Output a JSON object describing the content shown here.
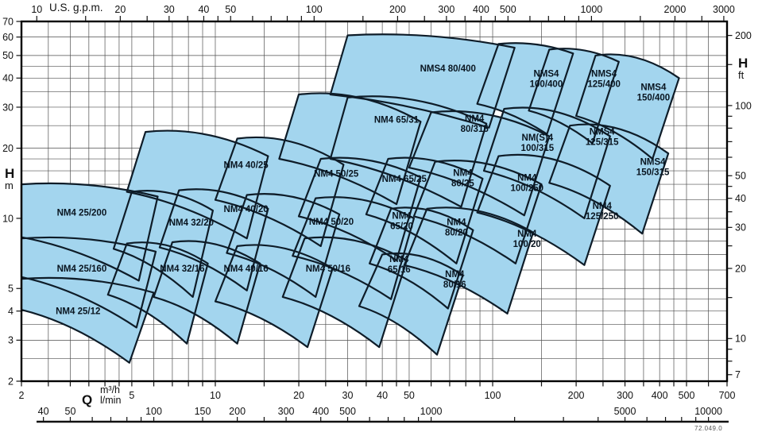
{
  "colors": {
    "region_fill": "#a3d5ee",
    "region_stroke": "#0e1c28",
    "region_text": "#091520",
    "grid": "#4f4f4f",
    "frame": "#000000",
    "tick": "#111111",
    "text": "#111111"
  },
  "footer": {
    "code": "72.049.0"
  },
  "chart_data": {
    "type": "area",
    "subtype": "pump-selection-envelope-map",
    "title": "",
    "grid": "on",
    "axes": {
      "q": {
        "symbol": "Q",
        "unit_m3h": "m³/h",
        "unit_lmin": "l/min",
        "min": 2,
        "max": 700,
        "scale": "log",
        "labeled": [
          2,
          5,
          10,
          20,
          30,
          40,
          50,
          100,
          200,
          300,
          400,
          500,
          700
        ],
        "grid": [
          2,
          2.5,
          3,
          3.5,
          4,
          4.5,
          5,
          6,
          7,
          8,
          9,
          10,
          15,
          20,
          25,
          30,
          35,
          40,
          45,
          50,
          60,
          70,
          80,
          90,
          100,
          150,
          200,
          250,
          300,
          350,
          400,
          450,
          500,
          600,
          700
        ]
      },
      "gpm": {
        "title": "U.S. g.p.m.",
        "per_m3h": 4.40287,
        "labeled": [
          10,
          20,
          30,
          40,
          50,
          100,
          200,
          300,
          400,
          500,
          1000,
          2000,
          3000
        ],
        "ticks": [
          10,
          15,
          20,
          25,
          30,
          35,
          40,
          45,
          50,
          60,
          70,
          80,
          90,
          100,
          150,
          200,
          250,
          300,
          350,
          400,
          450,
          500,
          600,
          700,
          800,
          900,
          1000,
          1500,
          2000,
          2500,
          3000
        ]
      },
      "lmin": {
        "per_m3h": 16.6667,
        "labeled": [
          40,
          50,
          100,
          150,
          200,
          300,
          400,
          500,
          1000,
          5000,
          10000
        ],
        "ticks": [
          40,
          50,
          60,
          70,
          80,
          90,
          100,
          150,
          200,
          250,
          300,
          400,
          500,
          600,
          700,
          800,
          900,
          1000,
          2000,
          3000,
          4000,
          5000,
          6000,
          7000,
          8000,
          9000,
          10000
        ]
      },
      "h_m": {
        "symbol": "H",
        "unit": "m",
        "min": 2,
        "max": 70,
        "scale": "log",
        "labeled": [
          70,
          60,
          50,
          40,
          30,
          20,
          10,
          5,
          4,
          3,
          2
        ],
        "grid": [
          2,
          2.5,
          3,
          3.5,
          4,
          4.5,
          5,
          6,
          7,
          8,
          9,
          10,
          12,
          14,
          16,
          18,
          20,
          25,
          30,
          35,
          40,
          45,
          50,
          60,
          70
        ]
      },
      "h_ft": {
        "symbol": "H",
        "unit": "ft",
        "per_m": 3.28084,
        "labeled": [
          200,
          100,
          50,
          40,
          30,
          20,
          10,
          7
        ],
        "ticks": [
          7,
          8,
          9,
          10,
          15,
          20,
          25,
          30,
          35,
          40,
          45,
          50,
          60,
          70,
          80,
          90,
          100,
          150,
          200
        ]
      }
    },
    "regions": [
      {
        "name": "NM4 25/200",
        "label_lines": [
          "NM4 25/200"
        ],
        "label_at": [
          3.3,
          10.6
        ],
        "envelope": [
          [
            2,
            14
          ],
          [
            6.2,
            12.4
          ],
          [
            5.3,
            5.4
          ],
          [
            2,
            8.3
          ]
        ]
      },
      {
        "name": "NM4 25/160",
        "label_lines": [
          "NM4 25/160"
        ],
        "label_at": [
          3.3,
          6.1
        ],
        "envelope": [
          [
            2,
            8.2
          ],
          [
            6.1,
            7.2
          ],
          [
            5.2,
            3.4
          ],
          [
            2,
            5.6
          ]
        ]
      },
      {
        "name": "NM4 25/12",
        "label_lines": [
          "NM4 25/12"
        ],
        "label_at": [
          3.2,
          4.0
        ],
        "envelope": [
          [
            2,
            5.5
          ],
          [
            6,
            4.8
          ],
          [
            4.9,
            2.4
          ],
          [
            2,
            4.05
          ]
        ]
      },
      {
        "name": "NM4 32/20",
        "label_lines": [
          "NM4 32/20"
        ],
        "label_at": [
          8.2,
          9.6
        ],
        "envelope": [
          [
            5,
            13
          ],
          [
            9.8,
            10.8
          ],
          [
            8.3,
            4.6
          ],
          [
            4.3,
            7.4
          ]
        ]
      },
      {
        "name": "NM4 32/16",
        "label_lines": [
          "NM4 32/16"
        ],
        "label_at": [
          7.6,
          6.1
        ],
        "envelope": [
          [
            4.8,
            7.8
          ],
          [
            9.4,
            6.4
          ],
          [
            7.9,
            2.9
          ],
          [
            4.1,
            4.7
          ]
        ]
      },
      {
        "name": "NM4 40/25",
        "label_lines": [
          "NM4 40/25"
        ],
        "label_at": [
          12.9,
          17
        ],
        "envelope": [
          [
            5.6,
            23.5
          ],
          [
            15.5,
            18.5
          ],
          [
            13,
            8.2
          ],
          [
            4.8,
            13
          ]
        ]
      },
      {
        "name": "NM4 40/20",
        "label_lines": [
          "NM4 40/20"
        ],
        "label_at": [
          12.9,
          11
        ],
        "envelope": [
          [
            7.4,
            13.2
          ],
          [
            15.5,
            11
          ],
          [
            13,
            4.9
          ],
          [
            6.3,
            7.5
          ]
        ]
      },
      {
        "name": "NM4 40/16",
        "label_lines": [
          "NM4 40/16"
        ],
        "label_at": [
          12.9,
          6.1
        ],
        "envelope": [
          [
            7,
            7.9
          ],
          [
            14.5,
            6.4
          ],
          [
            12,
            2.9
          ],
          [
            6,
            4.6
          ]
        ]
      },
      {
        "name": "NM4 50/25",
        "label_lines": [
          "NM4 50/25"
        ],
        "label_at": [
          27.3,
          15.6
        ],
        "envelope": [
          [
            12,
            22
          ],
          [
            29,
            17
          ],
          [
            24,
            7.6
          ],
          [
            10,
            12
          ]
        ]
      },
      {
        "name": "NM4 50/20",
        "label_lines": [
          "NM4 50/20"
        ],
        "label_at": [
          26.2,
          9.7
        ],
        "envelope": [
          [
            13,
            12.6
          ],
          [
            28,
            10.4
          ],
          [
            23,
            4.6
          ],
          [
            11,
            7.1
          ]
        ]
      },
      {
        "name": "NM4 50/16",
        "label_lines": [
          "NM4 50/16"
        ],
        "label_at": [
          25.5,
          6.1
        ],
        "envelope": [
          [
            12,
            7.6
          ],
          [
            26.5,
            6.1
          ],
          [
            21.5,
            2.8
          ],
          [
            10,
            4.4
          ]
        ]
      },
      {
        "name": "NM4 65/31",
        "label_lines": [
          "NM4 65/31"
        ],
        "label_at": [
          45,
          26.6
        ],
        "envelope": [
          [
            20,
            34
          ],
          [
            55,
            26
          ],
          [
            45,
            11.5
          ],
          [
            17,
            18
          ]
        ]
      },
      {
        "name": "NM4 65/25",
        "label_lines": [
          "NM4 65/25"
        ],
        "label_at": [
          48,
          14.8
        ],
        "envelope": [
          [
            24,
            18
          ],
          [
            55,
            15
          ],
          [
            45,
            6.6
          ],
          [
            20,
            10.2
          ]
        ]
      },
      {
        "name": "NM4 65/20",
        "label_lines": [
          "NM4",
          "65/20"
        ],
        "label_at": [
          47,
          9.8
        ],
        "envelope": [
          [
            23,
            12.2
          ],
          [
            52,
            10
          ],
          [
            43,
            4.5
          ],
          [
            19,
            6.9
          ]
        ]
      },
      {
        "name": "NM4 65/16",
        "label_lines": [
          "NM4",
          "65/16"
        ],
        "label_at": [
          46,
          6.4
        ],
        "envelope": [
          [
            21,
            8.2
          ],
          [
            49,
            6.6
          ],
          [
            39,
            2.8
          ],
          [
            17.5,
            4.6
          ]
        ]
      },
      {
        "name": "NM4 80/315",
        "label_lines": [
          "NM4",
          "80/315"
        ],
        "label_at": [
          86,
          25.6
        ],
        "envelope": [
          [
            30,
            33
          ],
          [
            95,
            25.5
          ],
          [
            77,
            11.2
          ],
          [
            26,
            18
          ]
        ]
      },
      {
        "name": "NM4 80/25",
        "label_lines": [
          "NM4",
          "80/25"
        ],
        "label_at": [
          78,
          15
        ],
        "envelope": [
          [
            42,
            18
          ],
          [
            92,
            14.8
          ],
          [
            74,
            6.4
          ],
          [
            35,
            10.4
          ]
        ]
      },
      {
        "name": "NM4 80/20",
        "label_lines": [
          "NM4",
          "80/20"
        ],
        "label_at": [
          74,
          9.2
        ],
        "envelope": [
          [
            43,
            11
          ],
          [
            85,
            8.9
          ],
          [
            69,
            4.1
          ],
          [
            36,
            6.4
          ]
        ]
      },
      {
        "name": "NM4 80/16",
        "label_lines": [
          "NM4",
          "80/16"
        ],
        "label_at": [
          73,
          5.5
        ],
        "envelope": [
          [
            40,
            7
          ],
          [
            78,
            5.7
          ],
          [
            63,
            2.6
          ],
          [
            33,
            4.2
          ]
        ]
      },
      {
        "name": "NM(S)4 100/315",
        "label_lines": [
          "NM(S)4",
          "100/315"
        ],
        "label_at": [
          145,
          21.2
        ],
        "envelope": [
          [
            60,
            28.5
          ],
          [
            160,
            22.5
          ],
          [
            130,
            10.3
          ],
          [
            50,
            16.5
          ]
        ]
      },
      {
        "name": "NM4 100/250",
        "label_lines": [
          "NM4",
          "100/250"
        ],
        "label_at": [
          133,
          14.3
        ],
        "envelope": [
          [
            62,
            17.5
          ],
          [
            150,
            14
          ],
          [
            121,
            6.4
          ],
          [
            52,
            10.2
          ]
        ]
      },
      {
        "name": "NM4 100/20",
        "label_lines": [
          "NM4",
          "100/20"
        ],
        "label_at": [
          133,
          8.2
        ],
        "envelope": [
          [
            58,
            11
          ],
          [
            140,
            8.7
          ],
          [
            113,
            3.9
          ],
          [
            48,
            6.3
          ]
        ]
      },
      {
        "name": "NMS4 125/315",
        "label_lines": [
          "NMS4",
          "125/315"
        ],
        "label_at": [
          248,
          22.5
        ],
        "envelope": [
          [
            110,
            29.5
          ],
          [
            265,
            22.5
          ],
          [
            214,
            10
          ],
          [
            93,
            16
          ]
        ]
      },
      {
        "name": "NM4 125/250",
        "label_lines": [
          "NM4",
          "125/250"
        ],
        "label_at": [
          248,
          10.8
        ],
        "envelope": [
          [
            105,
            18.5
          ],
          [
            265,
            13.8
          ],
          [
            214,
            6.3
          ],
          [
            88,
            10.6
          ]
        ]
      },
      {
        "name": "NMS4 150/315",
        "label_lines": [
          "NMS4",
          "150/315"
        ],
        "label_at": [
          378,
          16.7
        ],
        "envelope": [
          [
            190,
            25
          ],
          [
            430,
            19
          ],
          [
            346,
            8.6
          ],
          [
            160,
            14.2
          ]
        ]
      },
      {
        "name": "NMS4 80/400",
        "label_lines": [
          "NMS4 80/400"
        ],
        "label_at": [
          69,
          44
        ],
        "envelope": [
          [
            30,
            61
          ],
          [
            120,
            54
          ],
          [
            97,
            24.5
          ],
          [
            26,
            34
          ]
        ]
      },
      {
        "name": "NMS4 100/400",
        "label_lines": [
          "NMS4",
          "100/400"
        ],
        "label_at": [
          156,
          40
        ],
        "envelope": [
          [
            105,
            56
          ],
          [
            195,
            51
          ],
          [
            157,
            23
          ],
          [
            88,
            31
          ]
        ]
      },
      {
        "name": "NMS4 125/400",
        "label_lines": [
          "NMS4",
          "125/400"
        ],
        "label_at": [
          252,
          40
        ],
        "envelope": [
          [
            160,
            53
          ],
          [
            285,
            47
          ],
          [
            229,
            21
          ],
          [
            135,
            29
          ]
        ]
      },
      {
        "name": "NMS4 150/400",
        "label_lines": [
          "NMS4",
          "150/400"
        ],
        "label_at": [
          380,
          35
        ],
        "envelope": [
          [
            235,
            50
          ],
          [
            470,
            40
          ],
          [
            377,
            18
          ],
          [
            200,
            27.5
          ]
        ]
      }
    ]
  }
}
